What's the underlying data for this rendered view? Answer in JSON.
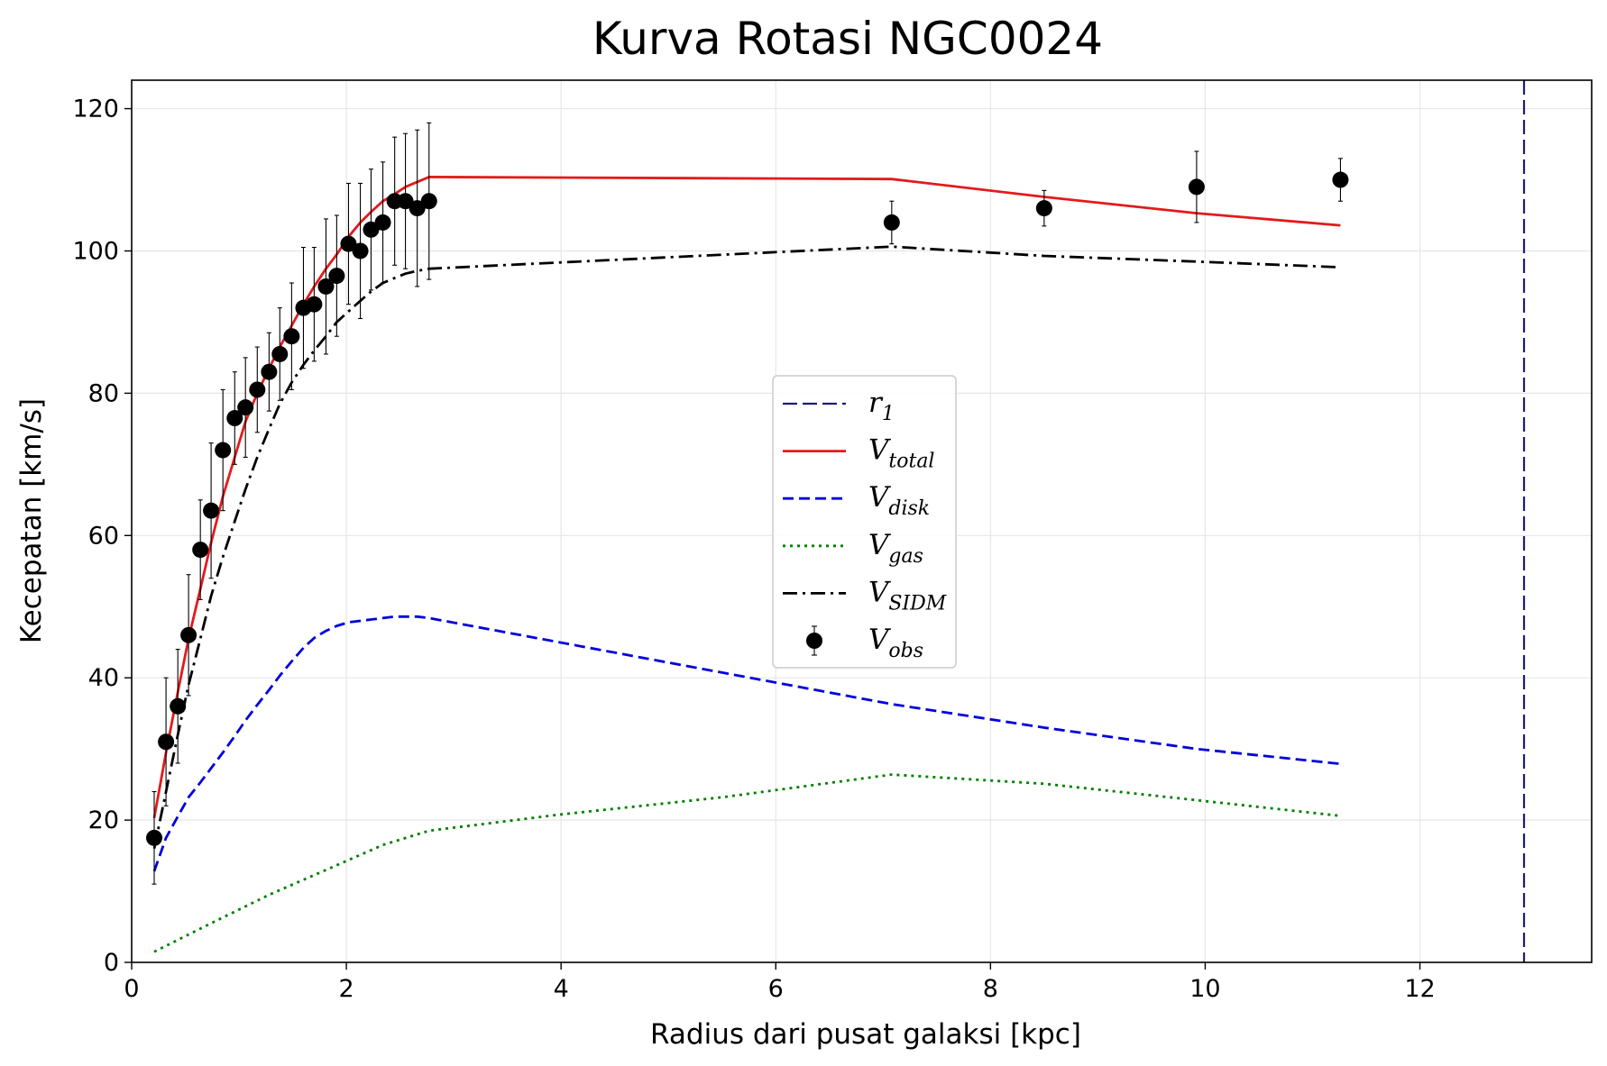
{
  "chart_data": {
    "type": "line",
    "title": "Kurva Rotasi NGC0024",
    "xlabel": "Radius dari pusat galaksi [kpc]",
    "ylabel": "Kecepatan [km/s]",
    "xlim": [
      0,
      13.6
    ],
    "ylim": [
      0,
      124
    ],
    "xticks": [
      "0",
      "2",
      "4",
      "6",
      "8",
      "10",
      "12"
    ],
    "yticks": [
      "0",
      "20",
      "40",
      "60",
      "80",
      "100",
      "120"
    ],
    "grid": true,
    "legend_position": "center",
    "r1": 12.97,
    "series": [
      {
        "name": "V_total",
        "label_main": "V",
        "label_sub": "total",
        "color": "#e31a1c",
        "style": "solid",
        "x": [
          0.21,
          0.32,
          0.43,
          0.53,
          0.64,
          0.74,
          0.85,
          0.96,
          1.06,
          1.17,
          1.28,
          1.38,
          1.49,
          1.6,
          1.7,
          1.81,
          1.91,
          2.02,
          2.13,
          2.23,
          2.34,
          2.45,
          2.55,
          2.66,
          2.77,
          7.08,
          8.5,
          9.92,
          11.26
        ],
        "values": [
          20.3,
          29.5,
          38.0,
          45.5,
          52.5,
          59.0,
          65.5,
          71.0,
          76.0,
          80.0,
          83.5,
          86.5,
          89.5,
          92.5,
          95.0,
          97.5,
          99.5,
          102.0,
          104.0,
          105.5,
          107.0,
          108.0,
          109.0,
          109.7,
          110.4,
          110.1,
          107.6,
          105.3,
          103.6
        ]
      },
      {
        "name": "V_disk",
        "label_main": "V",
        "label_sub": "disk",
        "color": "#0000dd",
        "style": "dashed",
        "x": [
          0.21,
          0.32,
          0.43,
          0.53,
          0.64,
          0.74,
          0.85,
          0.96,
          1.06,
          1.17,
          1.28,
          1.38,
          1.49,
          1.6,
          1.7,
          1.81,
          1.91,
          2.02,
          2.13,
          2.23,
          2.34,
          2.45,
          2.55,
          2.66,
          2.77,
          7.08,
          8.5,
          9.92,
          11.26
        ],
        "values": [
          12.8,
          17.5,
          20.5,
          23.2,
          25.3,
          27.3,
          29.5,
          31.8,
          34.0,
          36.2,
          38.3,
          40.3,
          42.3,
          44.2,
          45.6,
          46.6,
          47.3,
          47.8,
          48.0,
          48.2,
          48.4,
          48.6,
          48.6,
          48.6,
          48.4,
          36.3,
          33.0,
          30.0,
          27.9
        ]
      },
      {
        "name": "V_gas",
        "label_main": "V",
        "label_sub": "gas",
        "color": "#008000",
        "style": "dotted",
        "x": [
          0.21,
          0.74,
          1.28,
          1.81,
          2.34,
          2.77,
          4.0,
          5.5,
          7.08,
          8.5,
          9.92,
          11.26
        ],
        "values": [
          1.5,
          5.5,
          9.5,
          13.0,
          16.5,
          18.5,
          20.8,
          23.2,
          26.4,
          25.1,
          22.8,
          20.6
        ]
      },
      {
        "name": "V_SIDM",
        "label_main": "V",
        "label_sub": "SIDM",
        "color": "#000000",
        "style": "dashdot",
        "x": [
          0.21,
          0.32,
          0.43,
          0.53,
          0.64,
          0.74,
          0.85,
          0.96,
          1.06,
          1.17,
          1.28,
          1.38,
          1.49,
          1.6,
          1.7,
          1.81,
          1.91,
          2.02,
          2.13,
          2.23,
          2.34,
          2.45,
          2.55,
          2.66,
          2.77,
          7.08,
          8.5,
          9.92,
          11.26
        ],
        "values": [
          16.0,
          24.0,
          32.0,
          39.0,
          45.5,
          51.5,
          57.0,
          62.0,
          66.5,
          71.0,
          75.0,
          78.5,
          81.5,
          84.0,
          86.0,
          88.0,
          90.0,
          91.5,
          93.0,
          94.3,
          95.5,
          96.2,
          96.8,
          97.2,
          97.5,
          100.6,
          99.3,
          98.5,
          97.7
        ]
      }
    ],
    "observed": {
      "name": "V_obs",
      "label_main": "V",
      "label_sub": "obs",
      "color": "#000000",
      "x": [
        0.21,
        0.32,
        0.43,
        0.53,
        0.64,
        0.74,
        0.85,
        0.96,
        1.06,
        1.17,
        1.28,
        1.38,
        1.49,
        1.6,
        1.7,
        1.81,
        1.91,
        2.02,
        2.13,
        2.23,
        2.34,
        2.45,
        2.55,
        2.66,
        2.77,
        7.08,
        8.5,
        9.92,
        11.26
      ],
      "values": [
        17.5,
        31.0,
        36.0,
        46.0,
        58.0,
        63.5,
        72.0,
        76.5,
        78.0,
        80.5,
        83.0,
        85.5,
        88.0,
        92.0,
        92.5,
        95.0,
        96.5,
        101.0,
        100.0,
        103.0,
        104.0,
        107.0,
        107.0,
        106.0,
        107.0,
        104.0,
        106.0,
        109.0,
        110.0
      ],
      "errors": [
        6.5,
        9.0,
        8.0,
        8.5,
        7.0,
        9.5,
        8.5,
        6.5,
        7.0,
        6.0,
        5.5,
        6.5,
        7.5,
        8.5,
        8.0,
        9.5,
        8.5,
        8.5,
        9.5,
        8.5,
        8.5,
        9.0,
        9.5,
        11.0,
        11.0,
        3.0,
        2.5,
        5.0,
        3.0
      ]
    },
    "r1_label": {
      "main": "r",
      "sub": "1"
    }
  }
}
